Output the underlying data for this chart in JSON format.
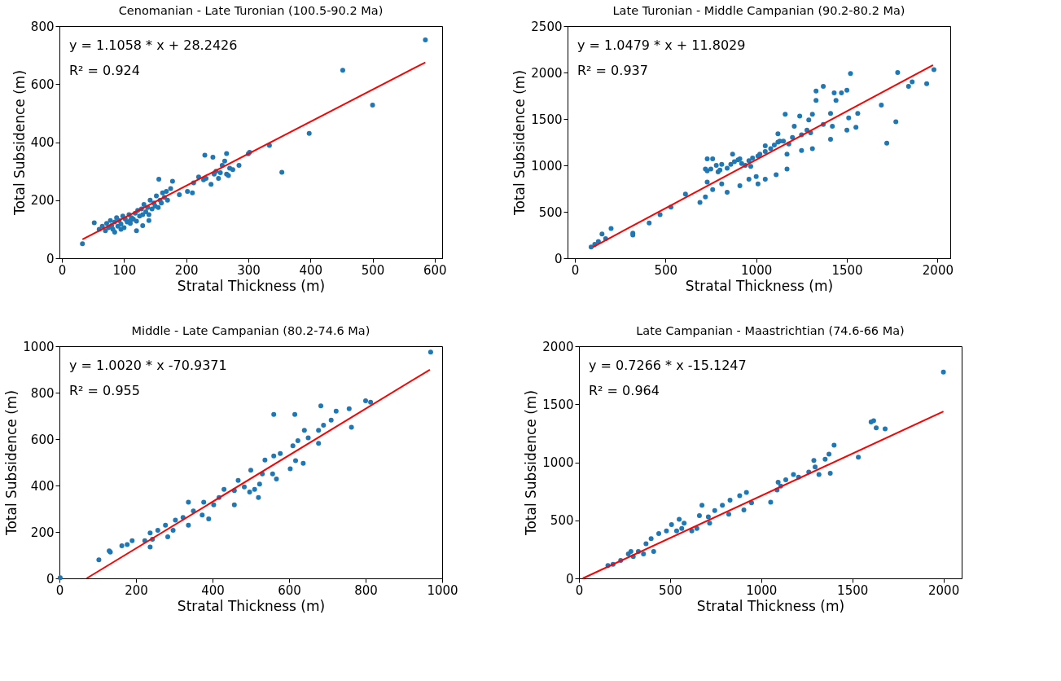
{
  "chart_data": [
    {
      "type": "scatter",
      "title": "Cenomanian - Late Turonian (100.5-90.2 Ma)",
      "xlabel": "Stratal Thickness (m)",
      "ylabel": "Total Subsidence (m)",
      "xlim": [
        -4,
        612
      ],
      "ylim": [
        0,
        800
      ],
      "xticks": [
        0,
        100,
        200,
        300,
        400,
        500,
        600
      ],
      "yticks": [
        0,
        200,
        400,
        600,
        800
      ],
      "annotations": [
        "y = 1.1058 * x + 28.2426",
        "R² = 0.924"
      ],
      "series": [
        {
          "type": "scatter",
          "marker": "circle",
          "color": "#1f77b4",
          "x": [
            33,
            52,
            60,
            65,
            70,
            72,
            75,
            78,
            80,
            82,
            85,
            88,
            90,
            92,
            95,
            98,
            100,
            102,
            105,
            108,
            110,
            112,
            115,
            118,
            120,
            122,
            125,
            128,
            130,
            132,
            135,
            138,
            140,
            142,
            145,
            148,
            150,
            152,
            155,
            158,
            160,
            162,
            165,
            170,
            168,
            175,
            130,
            120,
            110,
            95,
            85,
            140,
            156,
            178,
            189,
            202,
            210,
            212,
            220,
            228,
            230,
            232,
            240,
            243,
            245,
            248,
            252,
            255,
            258,
            262,
            265,
            265,
            268,
            270,
            275,
            285,
            300,
            302,
            334,
            354,
            398,
            452,
            500,
            585
          ],
          "values": [
            50,
            122,
            100,
            110,
            95,
            120,
            105,
            130,
            112,
            100,
            125,
            140,
            110,
            130,
            118,
            145,
            105,
            135,
            125,
            150,
            120,
            140,
            135,
            155,
            128,
            165,
            145,
            170,
            150,
            185,
            160,
            175,
            150,
            200,
            170,
            190,
            180,
            215,
            175,
            200,
            190,
            225,
            210,
            200,
            230,
            240,
            112,
            95,
            130,
            100,
            90,
            130,
            272,
            265,
            219,
            230,
            225,
            260,
            280,
            270,
            355,
            275,
            255,
            348,
            290,
            300,
            275,
            295,
            320,
            335,
            361,
            290,
            285,
            310,
            305,
            320,
            360,
            365,
            389,
            296,
            430,
            648,
            528,
            752
          ]
        },
        {
          "type": "line",
          "marker": "none",
          "color": "#ff0000",
          "x": [
            33,
            585
          ],
          "values": [
            65,
            675
          ]
        }
      ]
    },
    {
      "type": "scatter",
      "title": "Late Turonian - Middle Campanian (90.2-80.2 Ma)",
      "xlabel": "Stratal Thickness (m)",
      "ylabel": "Total Subsidence (m)",
      "xlim": [
        -40,
        2070
      ],
      "ylim": [
        0,
        2500
      ],
      "xticks": [
        0,
        500,
        1000,
        1500,
        2000
      ],
      "yticks": [
        0,
        500,
        1000,
        1500,
        2000,
        2500
      ],
      "annotations": [
        "y = 1.0479 * x + 11.8029",
        "R² = 0.937"
      ],
      "series": [
        {
          "type": "scatter",
          "marker": "circle",
          "color": "#1f77b4",
          "x": [
            90,
            110,
            130,
            150,
            170,
            200,
            320,
            320,
            410,
            470,
            530,
            610,
            690,
            720,
            720,
            730,
            730,
            760,
            760,
            790,
            810,
            810,
            840,
            870,
            910,
            910,
            960,
            970,
            1000,
            1010,
            1010,
            1050,
            1050,
            1110,
            1120,
            1130,
            1160,
            1170,
            1170,
            1210,
            1240,
            1250,
            1290,
            1310,
            1310,
            1330,
            1330,
            1370,
            1370,
            1410,
            1410,
            1420,
            1430,
            1440,
            1470,
            1500,
            1500,
            1510,
            1520,
            1550,
            1560,
            1690,
            1720,
            1770,
            1780,
            1840,
            1860,
            1940,
            1980,
            730,
            750,
            780,
            800,
            840,
            860,
            880,
            900,
            920,
            940,
            960,
            980,
            1020,
            1050,
            1080,
            1100,
            1120,
            1150,
            1180,
            1200,
            1250,
            1280,
            1300
          ],
          "values": [
            120,
            150,
            180,
            260,
            210,
            320,
            270,
            250,
            380,
            470,
            550,
            690,
            600,
            660,
            960,
            820,
            1070,
            740,
            1070,
            930,
            800,
            1010,
            710,
            1120,
            780,
            1070,
            850,
            990,
            880,
            1100,
            800,
            1210,
            850,
            900,
            1340,
            1260,
            1550,
            960,
            1120,
            1420,
            1530,
            1160,
            1490,
            1550,
            1180,
            1800,
            1700,
            1850,
            1440,
            1280,
            1560,
            1420,
            1780,
            1700,
            1780,
            1380,
            1810,
            1510,
            1990,
            1410,
            1560,
            1650,
            1240,
            1470,
            2000,
            1850,
            1900,
            1880,
            2030,
            940,
            960,
            1000,
            950,
            970,
            1010,
            1040,
            1060,
            1020,
            1000,
            1050,
            1080,
            1120,
            1150,
            1180,
            1220,
            1250,
            1260,
            1230,
            1300,
            1330,
            1380,
            1350
          ]
        },
        {
          "type": "line",
          "marker": "none",
          "color": "#ff0000",
          "x": [
            100,
            1975
          ],
          "values": [
            120,
            2080
          ]
        }
      ]
    },
    {
      "type": "scatter",
      "title": "Middle - Late Campanian (80.2-74.6 Ma)",
      "xlabel": "Stratal Thickness (m)",
      "ylabel": "Total Subsidence (m)",
      "xlim": [
        0,
        1000
      ],
      "ylim": [
        0,
        1000
      ],
      "xticks": [
        0,
        200,
        400,
        600,
        800,
        1000
      ],
      "yticks": [
        0,
        200,
        400,
        600,
        800,
        1000
      ],
      "annotations": [
        "y = 1.0020 * x -70.9371",
        "R² = 0.955"
      ],
      "series": [
        {
          "type": "scatter",
          "marker": "circle",
          "color": "#1f77b4",
          "x": [
            2,
            103,
            133,
            130,
            163,
            177,
            190,
            223,
            237,
            243,
            237,
            257,
            277,
            283,
            297,
            303,
            323,
            337,
            350,
            337,
            373,
            390,
            377,
            403,
            417,
            430,
            457,
            457,
            467,
            483,
            497,
            510,
            520,
            523,
            500,
            530,
            557,
            560,
            567,
            537,
            577,
            603,
            617,
            637,
            610,
            623,
            650,
            640,
            677,
            677,
            690,
            710,
            723,
            757,
            800,
            813,
            763,
            683,
            615,
            560,
            970
          ],
          "values": [
            3,
            80,
            113,
            118,
            140,
            146,
            162,
            162,
            135,
            168,
            196,
            207,
            229,
            179,
            207,
            251,
            262,
            229,
            290,
            328,
            273,
            256,
            328,
            317,
            348,
            383,
            317,
            378,
            422,
            394,
            372,
            383,
            348,
            406,
            466,
            450,
            450,
            527,
            428,
            510,
            538,
            472,
            507,
            496,
            571,
            593,
            605,
            638,
            582,
            638,
            660,
            682,
            720,
            731,
            765,
            759,
            651,
            743,
            706,
            706,
            975
          ]
        },
        {
          "type": "line",
          "marker": "none",
          "color": "#ff0000",
          "x": [
            71,
            968
          ],
          "values": [
            0,
            899
          ]
        }
      ]
    },
    {
      "type": "scatter",
      "title": "Late Campanian - Maastrichtian (74.6-66 Ma)",
      "xlabel": "Stratal Thickness (m)",
      "ylabel": "Total Subsidence (m)",
      "xlim": [
        0,
        2100
      ],
      "ylim": [
        0,
        2000
      ],
      "xticks": [
        0,
        500,
        1000,
        1500,
        2000
      ],
      "yticks": [
        0,
        500,
        1000,
        1500,
        2000
      ],
      "annotations": [
        "y = 0.7266 * x -15.1247",
        "R² = 0.964"
      ],
      "series": [
        {
          "type": "scatter",
          "marker": "circle",
          "color": "#1f77b4",
          "x": [
            159,
            187,
            229,
            271,
            285,
            298,
            326,
            354,
            368,
            396,
            410,
            438,
            480,
            508,
            536,
            550,
            564,
            577,
            619,
            647,
            661,
            675,
            710,
            717,
            745,
            787,
            822,
            829,
            882,
            905,
            919,
            947,
            1052,
            1087,
            1093,
            1107,
            1135,
            1177,
            1205,
            1261,
            1289,
            1296,
            1317,
            1351,
            1372,
            1379,
            1400,
            1533,
            1603,
            1617,
            1631,
            1680,
            2000
          ],
          "values": [
            110,
            121,
            155,
            210,
            232,
            188,
            232,
            210,
            298,
            342,
            232,
            386,
            408,
            464,
            408,
            508,
            430,
            475,
            408,
            430,
            541,
            629,
            530,
            475,
            585,
            629,
            552,
            673,
            713,
            589,
            740,
            651,
            656,
            762,
            828,
            795,
            850,
            894,
            872,
            916,
            1015,
            960,
            894,
            1026,
            1071,
            905,
            1148,
            1044,
            1347,
            1358,
            1296,
            1287,
            1777
          ]
        },
        {
          "type": "line",
          "marker": "none",
          "color": "#ff0000",
          "x": [
            21,
            2000
          ],
          "values": [
            0,
            1438
          ]
        }
      ]
    }
  ]
}
